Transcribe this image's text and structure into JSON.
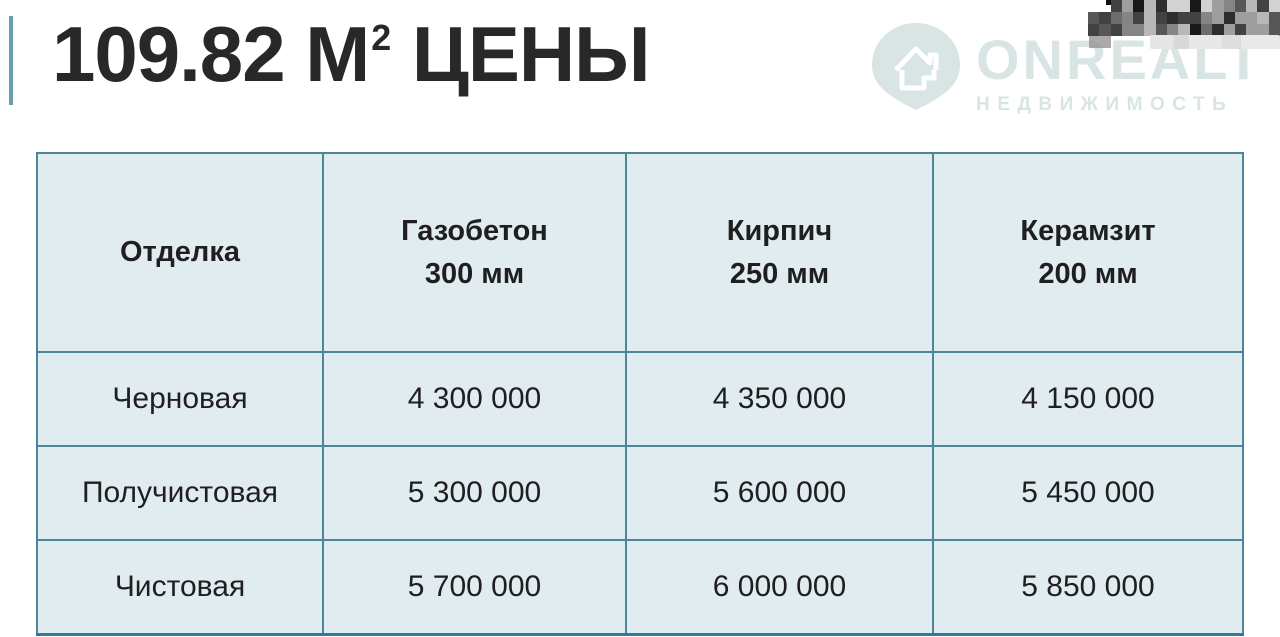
{
  "title": {
    "prefix": "109.82 М",
    "sup": "2",
    "suffix": " ЦЕНЫ"
  },
  "logo": {
    "name": "ONREALT",
    "subtitle": "НЕДВИЖИМОСТЬ"
  },
  "table": {
    "corner_header": "Отделка",
    "columns": [
      {
        "material": "Газобетон",
        "thickness": "300 мм"
      },
      {
        "material": "Кирпич",
        "thickness": "250 мм"
      },
      {
        "material": "Керамзит",
        "thickness": "200 мм"
      }
    ],
    "rows": [
      {
        "label": "Черновая",
        "values": [
          "4 300 000",
          "4 350 000",
          "4 150 000"
        ]
      },
      {
        "label": "Получистовая",
        "values": [
          "5 300 000",
          "5 600 000",
          "5 450 000"
        ]
      },
      {
        "label": "Чистовая",
        "values": [
          "5 700 000",
          "6 000 000",
          "5 850 000"
        ]
      }
    ]
  },
  "theme": {
    "accent": "#68a0a8",
    "title": "#282828",
    "text": "#1f1f1f",
    "table-border": "#4d8599",
    "table-border-bottom": "#2e7d99",
    "cell-bg": "#e1ecf1",
    "watermark": "rgba(125,170,164,0.30)"
  },
  "censor": {
    "palette": [
      "#181818",
      "#2d2d2d",
      "#424242",
      "#575757",
      "#6d6d6d",
      "#858585",
      "#9e9e9e",
      "#b8b8b8",
      "#d2d2d2"
    ],
    "cols": 17,
    "rows": 3
  }
}
